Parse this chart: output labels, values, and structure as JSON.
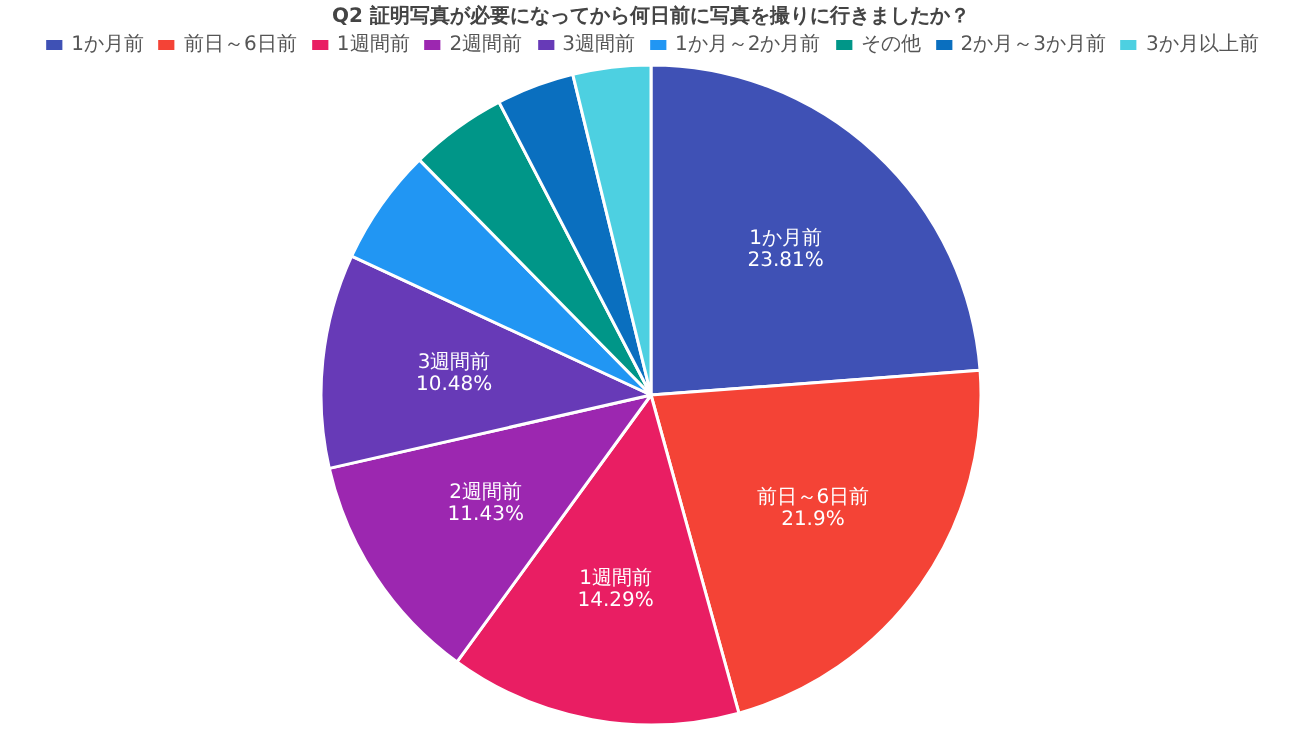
{
  "chart_data": {
    "type": "pie",
    "title": "Q2 証明写真が必要になってから何日前に写真を撮りに行きましたか？",
    "categories": [
      "1か月前",
      "前日～6日前",
      "1週間前",
      "2週間前",
      "3週間前",
      "1か月～2か月前",
      "その他",
      "2か月～3か月前",
      "3か月以上前"
    ],
    "values": [
      23.81,
      21.9,
      14.29,
      11.43,
      10.48,
      5.71,
      4.76,
      3.81,
      3.81
    ],
    "colors": [
      "#3f51b5",
      "#f44336",
      "#e91e63",
      "#9c27b0",
      "#673ab7",
      "#2196f3",
      "#009688",
      "#0a6fbf",
      "#4dd0e1"
    ],
    "value_labels": [
      "23.81%",
      "21.9%",
      "14.29%",
      "11.43%",
      "10.48%",
      null,
      null,
      null,
      null
    ],
    "legend": "top"
  }
}
